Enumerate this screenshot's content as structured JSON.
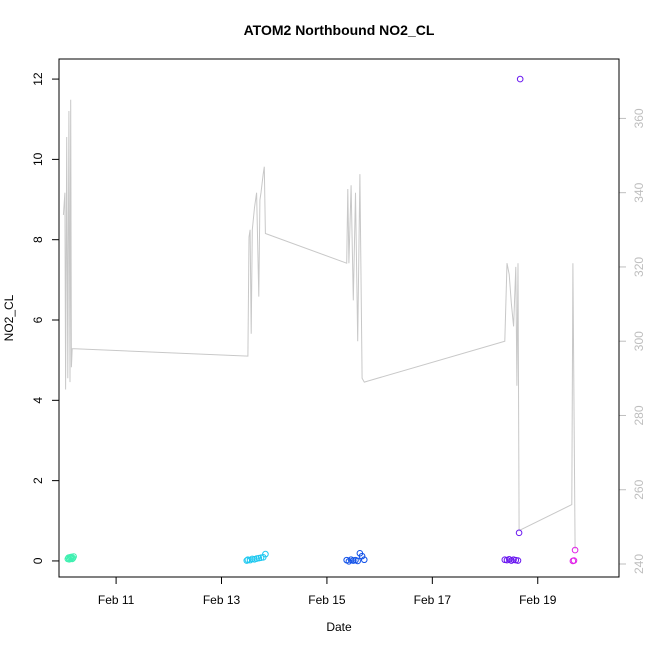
{
  "chart_data": {
    "type": "scatter",
    "title": "ATOM2 Northbound NO2_CL",
    "xlabel": "Date",
    "ylabel": "NO2_CL",
    "xlim": [
      "2024-02-09 22:00",
      "2024-02-20 13:00"
    ],
    "ylim": [
      -0.4,
      12.5
    ],
    "y2lim": [
      236.5,
      376
    ],
    "x_tick_labels": [
      {
        "date": "2024-02-11",
        "label": "Feb 11"
      },
      {
        "date": "2024-02-13",
        "label": "Feb 13"
      },
      {
        "date": "2024-02-15",
        "label": "Feb 15"
      },
      {
        "date": "2024-02-17",
        "label": "Feb 17"
      },
      {
        "date": "2024-02-19",
        "label": "Feb 19"
      }
    ],
    "y_ticks": [
      0,
      2,
      4,
      6,
      8,
      10,
      12
    ],
    "y2_ticks": [
      240,
      260,
      280,
      300,
      320,
      340,
      360
    ],
    "series": [
      {
        "kind": "points",
        "color": "#3ef0b0",
        "points": [
          [
            "2024-02-10 02:00",
            0.05
          ],
          [
            "2024-02-10 02:20",
            0.08
          ],
          [
            "2024-02-10 02:40",
            0.04
          ],
          [
            "2024-02-10 03:00",
            0.09
          ],
          [
            "2024-02-10 03:20",
            0.06
          ],
          [
            "2024-02-10 03:40",
            0.1
          ],
          [
            "2024-02-10 04:00",
            0.05
          ],
          [
            "2024-02-10 04:20",
            0.07
          ],
          [
            "2024-02-10 04:40",
            0.11
          ]
        ]
      },
      {
        "kind": "points",
        "color": "#1ec8f0",
        "points": [
          [
            "2024-02-13 11:30",
            0.01
          ],
          [
            "2024-02-13 12:00",
            0.03
          ],
          [
            "2024-02-13 13:00",
            0.02
          ],
          [
            "2024-02-13 14:00",
            0.05
          ],
          [
            "2024-02-13 15:00",
            0.04
          ],
          [
            "2024-02-13 16:00",
            0.06
          ],
          [
            "2024-02-13 17:00",
            0.07
          ],
          [
            "2024-02-13 18:00",
            0.08
          ],
          [
            "2024-02-13 19:00",
            0.09
          ],
          [
            "2024-02-13 20:00",
            0.17
          ]
        ]
      },
      {
        "kind": "points",
        "color": "#1050e8",
        "points": [
          [
            "2024-02-15 09:00",
            0.02
          ],
          [
            "2024-02-15 10:00",
            -0.01
          ],
          [
            "2024-02-15 11:00",
            0.03
          ],
          [
            "2024-02-15 12:00",
            0.01
          ],
          [
            "2024-02-15 13:00",
            0.02
          ],
          [
            "2024-02-15 14:00",
            0.0
          ],
          [
            "2024-02-15 15:00",
            0.19
          ],
          [
            "2024-02-15 16:00",
            0.12
          ],
          [
            "2024-02-15 17:00",
            0.03
          ]
        ]
      },
      {
        "kind": "points",
        "color": "#6a18f0",
        "points": [
          [
            "2024-02-18 09:00",
            0.03
          ],
          [
            "2024-02-18 10:00",
            0.02
          ],
          [
            "2024-02-18 11:00",
            0.04
          ],
          [
            "2024-02-18 12:00",
            0.01
          ],
          [
            "2024-02-18 13:00",
            0.03
          ],
          [
            "2024-02-18 14:00",
            0.02
          ],
          [
            "2024-02-18 15:00",
            0.01
          ],
          [
            "2024-02-18 15:30",
            0.7
          ],
          [
            "2024-02-18 16:00",
            12.0
          ]
        ]
      },
      {
        "kind": "points",
        "color": "#e020e8",
        "points": [
          [
            "2024-02-19 16:00",
            0.0
          ],
          [
            "2024-02-19 16:30",
            0.01
          ],
          [
            "2024-02-19 17:00",
            0.27
          ]
        ]
      },
      {
        "kind": "line",
        "axis": "right",
        "color": "#c8c8c8",
        "points": [
          [
            "2024-02-10 00:00",
            334
          ],
          [
            "2024-02-10 00:40",
            340
          ],
          [
            "2024-02-10 01:00",
            287
          ],
          [
            "2024-02-10 01:30",
            355
          ],
          [
            "2024-02-10 02:00",
            290
          ],
          [
            "2024-02-10 02:30",
            362
          ],
          [
            "2024-02-10 03:00",
            289
          ],
          [
            "2024-02-10 03:20",
            365
          ],
          [
            "2024-02-10 03:40",
            293
          ],
          [
            "2024-02-10 04:00",
            298
          ],
          [
            "2024-02-13 12:00",
            296
          ],
          [
            "2024-02-13 12:30",
            328
          ],
          [
            "2024-02-13 13:00",
            330
          ],
          [
            "2024-02-13 13:30",
            302
          ],
          [
            "2024-02-13 14:00",
            330
          ],
          [
            "2024-02-13 15:00",
            336
          ],
          [
            "2024-02-13 16:00",
            340
          ],
          [
            "2024-02-13 17:00",
            312
          ],
          [
            "2024-02-13 17:30",
            338
          ],
          [
            "2024-02-13 18:00",
            340
          ],
          [
            "2024-02-13 19:00",
            345
          ],
          [
            "2024-02-13 19:30",
            347
          ],
          [
            "2024-02-13 20:00",
            329
          ],
          [
            "2024-02-15 09:00",
            321
          ],
          [
            "2024-02-15 09:30",
            341
          ],
          [
            "2024-02-15 10:00",
            321
          ],
          [
            "2024-02-15 11:00",
            342
          ],
          [
            "2024-02-15 12:00",
            311
          ],
          [
            "2024-02-15 13:00",
            340
          ],
          [
            "2024-02-15 14:00",
            300
          ],
          [
            "2024-02-15 15:00",
            345
          ],
          [
            "2024-02-15 16:00",
            290
          ],
          [
            "2024-02-15 17:00",
            289
          ],
          [
            "2024-02-18 09:00",
            300
          ],
          [
            "2024-02-18 10:00",
            321
          ],
          [
            "2024-02-18 11:00",
            318
          ],
          [
            "2024-02-18 12:00",
            310
          ],
          [
            "2024-02-18 13:00",
            304
          ],
          [
            "2024-02-18 14:00",
            320
          ],
          [
            "2024-02-18 14:30",
            288
          ],
          [
            "2024-02-18 15:00",
            321
          ],
          [
            "2024-02-18 15:30",
            249
          ],
          [
            "2024-02-19 15:30",
            256
          ],
          [
            "2024-02-19 16:00",
            321
          ],
          [
            "2024-02-19 17:00",
            244
          ]
        ]
      }
    ]
  }
}
